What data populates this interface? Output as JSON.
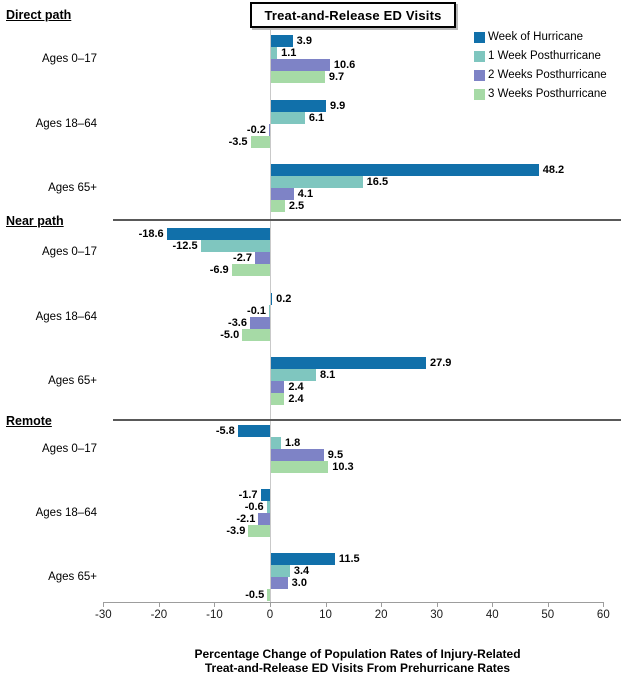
{
  "title": "Treat-and-Release ED Visits",
  "legend": {
    "items": [
      {
        "label": "Week of Hurricane",
        "color": "#1170AA"
      },
      {
        "label": "1 Week Posthurricane",
        "color": "#7FC6BF"
      },
      {
        "label": "2 Weeks Posthurricane",
        "color": "#7E83C6"
      },
      {
        "label": "3 Weeks Posthurricane",
        "color": "#A6DAA6"
      }
    ]
  },
  "xaxis": {
    "label_lines": [
      "Percentage Change of Population Rates of Injury-Related",
      "Treat-and-Release ED Visits From Prehurricane Rates"
    ]
  },
  "chart_data": {
    "type": "bar",
    "orientation": "horizontal",
    "title": "Treat-and-Release ED Visits",
    "xlabel": "Percentage Change of Population Rates of Injury-Related Treat-and-Release ED Visits From Prehurricane Rates",
    "xlim": [
      -30,
      60
    ],
    "xticks": [
      -30,
      -20,
      -10,
      0,
      10,
      20,
      30,
      40,
      50,
      60
    ],
    "legend_position": "top-right",
    "grid": false,
    "series_names": [
      "Week of Hurricane",
      "1 Week Posthurricane",
      "2 Weeks Posthurricane",
      "3 Weeks Posthurricane"
    ],
    "series_colors": [
      "#1170AA",
      "#7FC6BF",
      "#7E83C6",
      "#A6DAA6"
    ],
    "sections": [
      {
        "label": "Direct path",
        "groups": [
          {
            "label": "Ages 0–17",
            "values": [
              3.9,
              1.1,
              10.6,
              9.7
            ]
          },
          {
            "label": "Ages 18–64",
            "values": [
              9.9,
              6.1,
              -0.2,
              -3.5
            ]
          },
          {
            "label": "Ages 65+",
            "values": [
              48.2,
              16.5,
              4.1,
              2.5
            ]
          }
        ]
      },
      {
        "label": "Near path",
        "groups": [
          {
            "label": "Ages 0–17",
            "values": [
              -18.6,
              -12.5,
              -2.7,
              -6.9
            ]
          },
          {
            "label": "Ages 18–64",
            "values": [
              0.2,
              -0.1,
              -3.6,
              -5.0
            ]
          },
          {
            "label": "Ages 65+",
            "values": [
              27.9,
              8.1,
              2.4,
              2.4
            ]
          }
        ]
      },
      {
        "label": "Remote",
        "groups": [
          {
            "label": "Ages 0–17",
            "values": [
              -5.8,
              1.8,
              9.5,
              10.3
            ]
          },
          {
            "label": "Ages 18–64",
            "values": [
              -1.7,
              -0.6,
              -2.1,
              -3.9
            ]
          },
          {
            "label": "Ages 65+",
            "values": [
              11.5,
              3.4,
              3.0,
              -0.5
            ]
          }
        ]
      }
    ]
  }
}
